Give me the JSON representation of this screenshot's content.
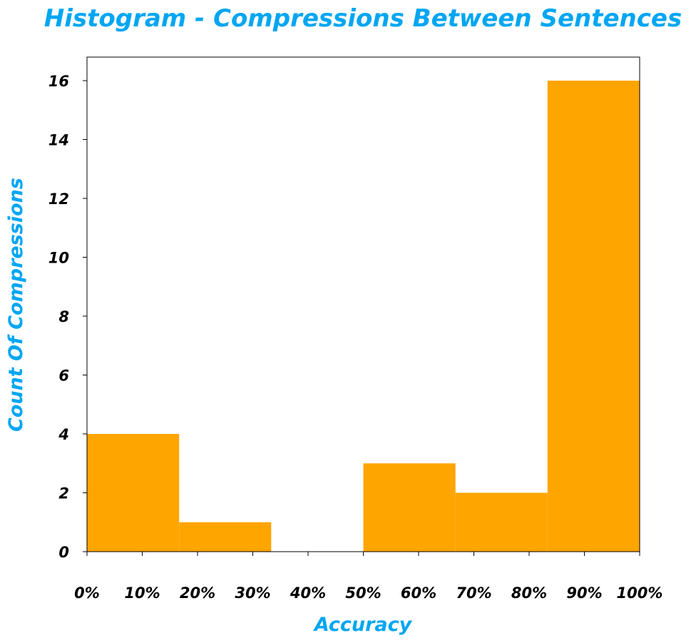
{
  "chart_data": {
    "type": "bar",
    "title": "Histogram - Compressions Between Sentences",
    "xlabel": "Accuracy",
    "ylabel": "Count Of Compressions",
    "bin_edges": [
      0,
      16.67,
      33.33,
      50,
      66.67,
      83.33,
      100
    ],
    "values": [
      4,
      1,
      0,
      3,
      2,
      16
    ],
    "xlim": [
      0,
      100
    ],
    "ylim": [
      0,
      16.8
    ],
    "x_ticks": [
      0,
      10,
      20,
      30,
      40,
      50,
      60,
      70,
      80,
      90,
      100
    ],
    "x_tick_labels": [
      "0%",
      "10%",
      "20%",
      "30%",
      "40%",
      "50%",
      "60%",
      "70%",
      "80%",
      "90%",
      "100%"
    ],
    "y_ticks": [
      0,
      2,
      4,
      6,
      8,
      10,
      12,
      14,
      16
    ],
    "y_tick_labels": [
      "0",
      "2",
      "4",
      "6",
      "8",
      "10",
      "12",
      "14",
      "16"
    ],
    "grid": false,
    "colors": {
      "bars": "#ffa500",
      "title": "#00a6f2",
      "axis_labels": "#00a6f2",
      "ticks": "#000000"
    }
  }
}
